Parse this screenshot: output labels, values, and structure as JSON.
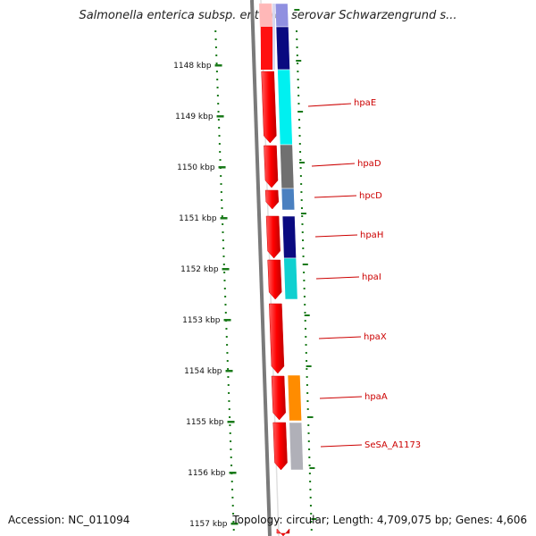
{
  "title": "Salmonella enterica subsp. enterica serovar Schwarzengrund s...",
  "accession": "Accession: NC_011094",
  "summary": "Topology: circular; Length: 4,709,075 bp; Genes: 4,606",
  "ruler_ticks": [
    "1148 kbp",
    "1149 kbp",
    "1150 kbp",
    "1151 kbp",
    "1152 kbp",
    "1153 kbp",
    "1154 kbp",
    "1155 kbp",
    "1156 kbp",
    "1157 kbp"
  ],
  "colors": {
    "forward_strand": "#ff0000",
    "backbone": "#808080",
    "tick_dots": "#1a7a1a",
    "label_text": "#cc0000"
  },
  "genes": [
    {
      "name": "",
      "color": "#9090e0"
    },
    {
      "name": "",
      "color": "#0a0a80"
    },
    {
      "name": "hpaE",
      "color": "#00f0f0"
    },
    {
      "name": "hpaD",
      "color": "#707070"
    },
    {
      "name": "hpcD",
      "color": "#4a80c0"
    },
    {
      "name": "hpaH",
      "color": "#0a0a80"
    },
    {
      "name": "hpaI",
      "color": "#10d0d0"
    },
    {
      "name": "hpaX",
      "color": ""
    },
    {
      "name": "hpaA",
      "color": "#ff8c00"
    },
    {
      "name": "SeSA_A1173",
      "color": "#b0b0b8"
    }
  ]
}
